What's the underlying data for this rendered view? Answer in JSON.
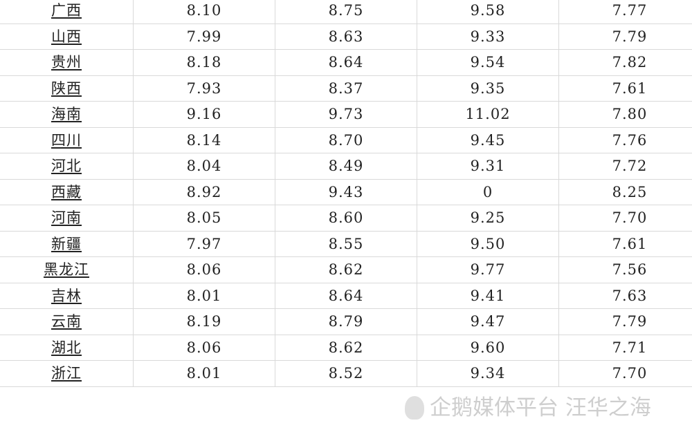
{
  "table": {
    "rows": [
      {
        "name": "广西",
        "v": [
          "8.10",
          "8.75",
          "9.58",
          "7.77"
        ]
      },
      {
        "name": "山西",
        "v": [
          "7.99",
          "8.63",
          "9.33",
          "7.79"
        ]
      },
      {
        "name": "贵州",
        "v": [
          "8.18",
          "8.64",
          "9.54",
          "7.82"
        ]
      },
      {
        "name": "陕西",
        "v": [
          "7.93",
          "8.37",
          "9.35",
          "7.61"
        ]
      },
      {
        "name": "海南",
        "v": [
          "9.16",
          "9.73",
          "11.02",
          "7.80"
        ]
      },
      {
        "name": "四川",
        "v": [
          "8.14",
          "8.70",
          "9.45",
          "7.76"
        ]
      },
      {
        "name": "河北",
        "v": [
          "8.04",
          "8.49",
          "9.31",
          "7.72"
        ]
      },
      {
        "name": "西藏",
        "v": [
          "8.92",
          "9.43",
          "0",
          "8.25"
        ]
      },
      {
        "name": "河南",
        "v": [
          "8.05",
          "8.60",
          "9.25",
          "7.70"
        ]
      },
      {
        "name": "新疆",
        "v": [
          "7.97",
          "8.55",
          "9.50",
          "7.61"
        ]
      },
      {
        "name": "黑龙江",
        "v": [
          "8.06",
          "8.62",
          "9.77",
          "7.56"
        ]
      },
      {
        "name": "吉林",
        "v": [
          "8.01",
          "8.64",
          "9.41",
          "7.63"
        ]
      },
      {
        "name": "云南",
        "v": [
          "8.19",
          "8.79",
          "9.47",
          "7.79"
        ]
      },
      {
        "name": "湖北",
        "v": [
          "8.06",
          "8.62",
          "9.60",
          "7.71"
        ]
      },
      {
        "name": "浙江",
        "v": [
          "8.01",
          "8.52",
          "9.34",
          "7.70"
        ]
      }
    ]
  },
  "watermark": {
    "text": "企鹅媒体平台 汪华之海",
    "icon": "penguin-icon"
  }
}
